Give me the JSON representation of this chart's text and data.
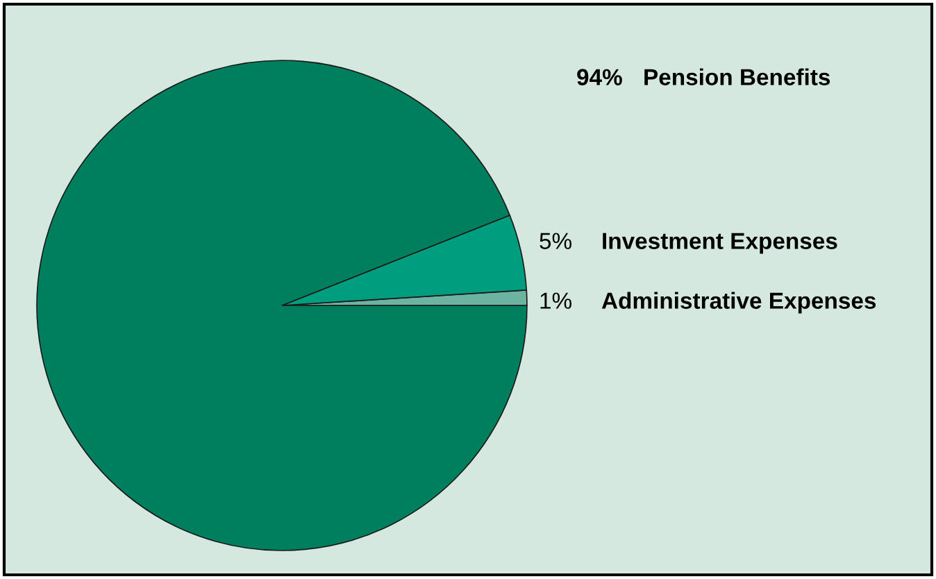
{
  "chart_data": {
    "type": "pie",
    "categories": [
      "Pension Benefits",
      "Investment Expenses",
      "Administrative Expenses"
    ],
    "values": [
      94,
      5,
      1
    ],
    "colors": [
      "#007f5f",
      "#009e7e",
      "#6db3a2"
    ],
    "value_labels": [
      "94%",
      "5%",
      "1%"
    ],
    "legend": false
  }
}
